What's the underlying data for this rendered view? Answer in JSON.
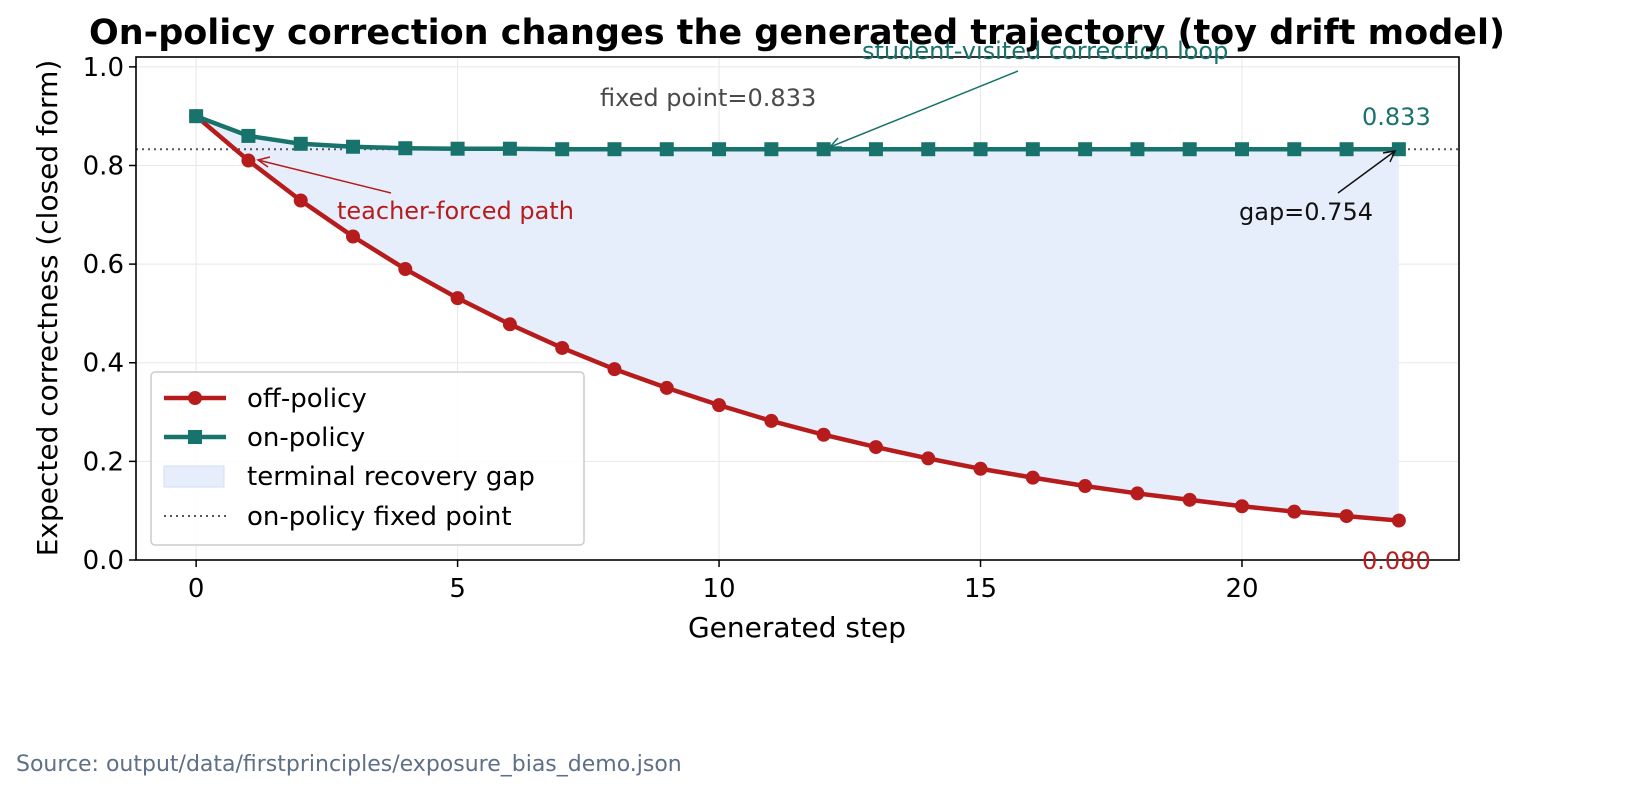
{
  "chart_data": {
    "type": "line",
    "title": "On-policy correction changes the generated trajectory (toy drift model)",
    "xlabel": "Generated step",
    "ylabel": "Expected correctness (closed form)",
    "xlim": [
      -1.15,
      24.15
    ],
    "ylim": [
      0.0,
      1.02
    ],
    "x_ticks": [
      0,
      5,
      10,
      15,
      20
    ],
    "y_ticks": [
      0.0,
      0.2,
      0.4,
      0.6,
      0.8,
      1.0
    ],
    "x_tick_labels": [
      "0",
      "5",
      "10",
      "15",
      "20"
    ],
    "y_tick_labels": [
      "0.0",
      "0.2",
      "0.4",
      "0.6",
      "0.8",
      "1.0"
    ],
    "grid": true,
    "legend_position": "lower-left",
    "x": [
      0,
      1,
      2,
      3,
      4,
      5,
      6,
      7,
      8,
      9,
      10,
      11,
      12,
      13,
      14,
      15,
      16,
      17,
      18,
      19,
      20,
      21,
      22,
      23
    ],
    "series": [
      {
        "name": "off-policy",
        "color": "#b71c1c",
        "marker": "circle",
        "values": [
          0.9,
          0.81,
          0.729,
          0.656,
          0.59,
          0.531,
          0.478,
          0.43,
          0.387,
          0.349,
          0.314,
          0.282,
          0.254,
          0.229,
          0.206,
          0.185,
          0.167,
          0.15,
          0.135,
          0.122,
          0.109,
          0.098,
          0.089,
          0.08
        ]
      },
      {
        "name": "on-policy",
        "color": "#17736b",
        "marker": "square",
        "values": [
          0.9,
          0.86,
          0.844,
          0.838,
          0.835,
          0.834,
          0.834,
          0.833,
          0.833,
          0.833,
          0.833,
          0.833,
          0.833,
          0.833,
          0.833,
          0.833,
          0.833,
          0.833,
          0.833,
          0.833,
          0.833,
          0.833,
          0.833,
          0.833
        ]
      }
    ],
    "fill_between": {
      "name": "terminal recovery gap",
      "color": "#e6edfb"
    },
    "reference_line": {
      "name": "on-policy fixed point",
      "value": 0.833,
      "color": "#555555"
    },
    "annotations": {
      "fixed_point_label": "fixed point=0.833",
      "teacher_forced_label": "teacher-forced path",
      "student_loop_label": "student-visited correction loop",
      "gap_label": "gap=0.754",
      "end_on_policy_label": "0.833",
      "end_off_policy_label": "0.080"
    }
  },
  "legend": {
    "off_policy": "off-policy",
    "on_policy": "on-policy",
    "gap": "terminal recovery gap",
    "fixed_point": "on-policy fixed point"
  },
  "source_note": "Source: output/data/firstprinciples/exposure_bias_demo.json"
}
